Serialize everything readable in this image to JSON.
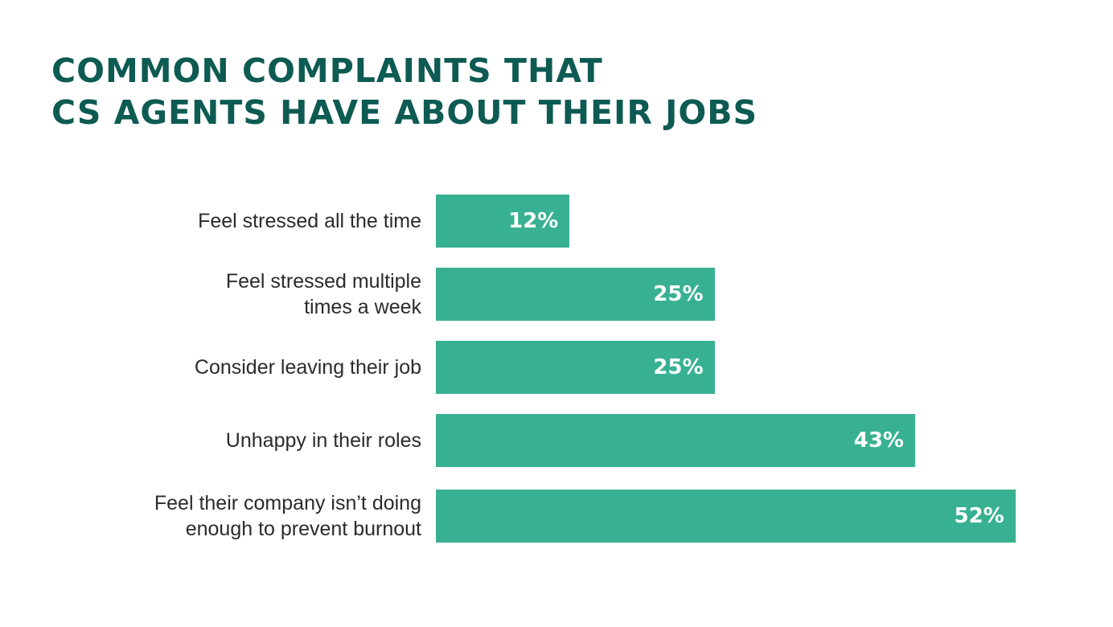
{
  "chart_data": {
    "type": "bar",
    "orientation": "horizontal",
    "title": "COMMON COMPLAINTS THAT\nCS AGENTS HAVE ABOUT THEIR JOBS",
    "title_lines": [
      "COMMON COMPLAINTS THAT",
      "CS AGENTS HAVE ABOUT THEIR JOBS"
    ],
    "categories": [
      "Feel stressed all the time",
      "Feel stressed multiple\ntimes a week",
      "Consider leaving their job",
      "Unhappy in their roles",
      "Feel their company isn’t doing\nenough to prevent burnout"
    ],
    "values": [
      12,
      25,
      25,
      43,
      52
    ],
    "data_labels": [
      "12%",
      "25%",
      "25%",
      "43%",
      "52%"
    ],
    "unit": "%",
    "grid": false,
    "legend": "none",
    "colors": {
      "bar": "#38b192",
      "title": "#0d5b52",
      "label": "#2b2b2b",
      "value_label": "#ffffff"
    }
  }
}
